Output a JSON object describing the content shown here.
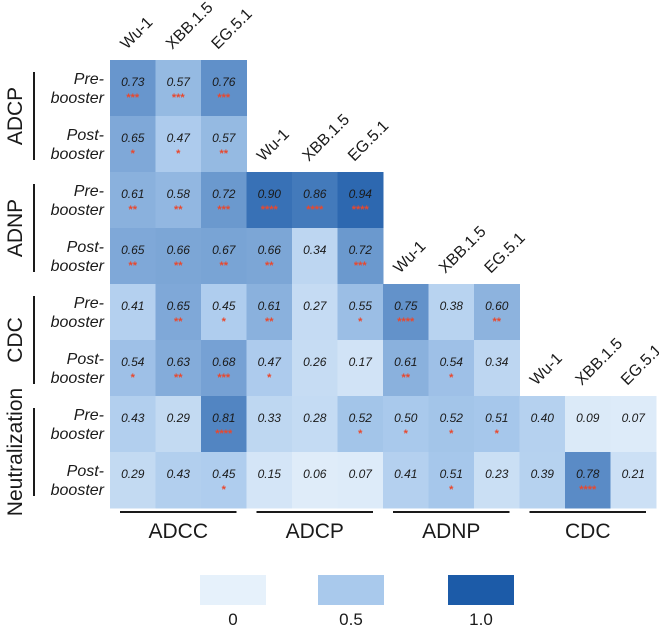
{
  "chart_data": {
    "type": "heatmap",
    "title": "",
    "value_range": [
      0,
      1.0
    ],
    "color_scale": {
      "low": "#e6f1fb",
      "mid": "#a9c9ec",
      "high": "#1c5ba8"
    },
    "star_color": "#e8482e",
    "column_labels": [
      "Wu-1",
      "XBB.1.5",
      "EG.5.1"
    ],
    "row_labels": [
      "Pre-\nbooster",
      "Post-\nbooster"
    ],
    "column_groups": [
      "ADCC",
      "ADCP",
      "ADNP",
      "CDC"
    ],
    "row_groups": [
      "ADCP",
      "ADNP",
      "CDC",
      "Neutralization"
    ],
    "rows": [
      {
        "group": "ADCP",
        "sub": "Pre-\nbooster",
        "cells": [
          {
            "v": "0.73",
            "s": "***"
          },
          {
            "v": "0.57",
            "s": "***"
          },
          {
            "v": "0.76",
            "s": "***"
          }
        ]
      },
      {
        "group": "ADCP",
        "sub": "Post-\nbooster",
        "cells": [
          {
            "v": "0.65",
            "s": "*"
          },
          {
            "v": "0.47",
            "s": "*"
          },
          {
            "v": "0.57",
            "s": "**"
          }
        ]
      },
      {
        "group": "ADNP",
        "sub": "Pre-\nbooster",
        "cells": [
          {
            "v": "0.61",
            "s": "**"
          },
          {
            "v": "0.58",
            "s": "**"
          },
          {
            "v": "0.72",
            "s": "***"
          },
          {
            "v": "0.90",
            "s": "****"
          },
          {
            "v": "0.86",
            "s": "****"
          },
          {
            "v": "0.94",
            "s": "****"
          }
        ]
      },
      {
        "group": "ADNP",
        "sub": "Post-\nbooster",
        "cells": [
          {
            "v": "0.65",
            "s": "**"
          },
          {
            "v": "0.66",
            "s": "**"
          },
          {
            "v": "0.67",
            "s": "**"
          },
          {
            "v": "0.66",
            "s": "**"
          },
          {
            "v": "0.34",
            "s": ""
          },
          {
            "v": "0.72",
            "s": "***"
          }
        ]
      },
      {
        "group": "CDC",
        "sub": "Pre-\nbooster",
        "cells": [
          {
            "v": "0.41",
            "s": ""
          },
          {
            "v": "0.65",
            "s": "**"
          },
          {
            "v": "0.45",
            "s": "*"
          },
          {
            "v": "0.61",
            "s": "**"
          },
          {
            "v": "0.27",
            "s": ""
          },
          {
            "v": "0.55",
            "s": "*"
          },
          {
            "v": "0.75",
            "s": "****"
          },
          {
            "v": "0.38",
            "s": ""
          },
          {
            "v": "0.60",
            "s": "**"
          }
        ]
      },
      {
        "group": "CDC",
        "sub": "Post-\nbooster",
        "cells": [
          {
            "v": "0.54",
            "s": "*"
          },
          {
            "v": "0.63",
            "s": "**"
          },
          {
            "v": "0.68",
            "s": "***"
          },
          {
            "v": "0.47",
            "s": "*"
          },
          {
            "v": "0.26",
            "s": ""
          },
          {
            "v": "0.17",
            "s": ""
          },
          {
            "v": "0.61",
            "s": "**"
          },
          {
            "v": "0.54",
            "s": "*"
          },
          {
            "v": "0.34",
            "s": ""
          }
        ]
      },
      {
        "group": "Neutralization",
        "sub": "Pre-\nbooster",
        "cells": [
          {
            "v": "0.43",
            "s": ""
          },
          {
            "v": "0.29",
            "s": ""
          },
          {
            "v": "0.81",
            "s": "****"
          },
          {
            "v": "0.33",
            "s": ""
          },
          {
            "v": "0.28",
            "s": ""
          },
          {
            "v": "0.52",
            "s": "*"
          },
          {
            "v": "0.50",
            "s": "*"
          },
          {
            "v": "0.52",
            "s": "*"
          },
          {
            "v": "0.51",
            "s": "*"
          },
          {
            "v": "0.40",
            "s": ""
          },
          {
            "v": "0.09",
            "s": ""
          },
          {
            "v": "0.07",
            "s": ""
          }
        ]
      },
      {
        "group": "Neutralization",
        "sub": "Post-\nbooster",
        "cells": [
          {
            "v": "0.29",
            "s": ""
          },
          {
            "v": "0.43",
            "s": ""
          },
          {
            "v": "0.45",
            "s": "*"
          },
          {
            "v": "0.15",
            "s": ""
          },
          {
            "v": "0.06",
            "s": ""
          },
          {
            "v": "0.07",
            "s": ""
          },
          {
            "v": "0.41",
            "s": ""
          },
          {
            "v": "0.51",
            "s": "*"
          },
          {
            "v": "0.23",
            "s": ""
          },
          {
            "v": "0.39",
            "s": ""
          },
          {
            "v": "0.78",
            "s": "****"
          },
          {
            "v": "0.21",
            "s": ""
          }
        ]
      }
    ],
    "legend": [
      {
        "label": "0",
        "value": 0
      },
      {
        "label": "0.5",
        "value": 0.5
      },
      {
        "label": "1.0",
        "value": 1.0
      }
    ]
  }
}
